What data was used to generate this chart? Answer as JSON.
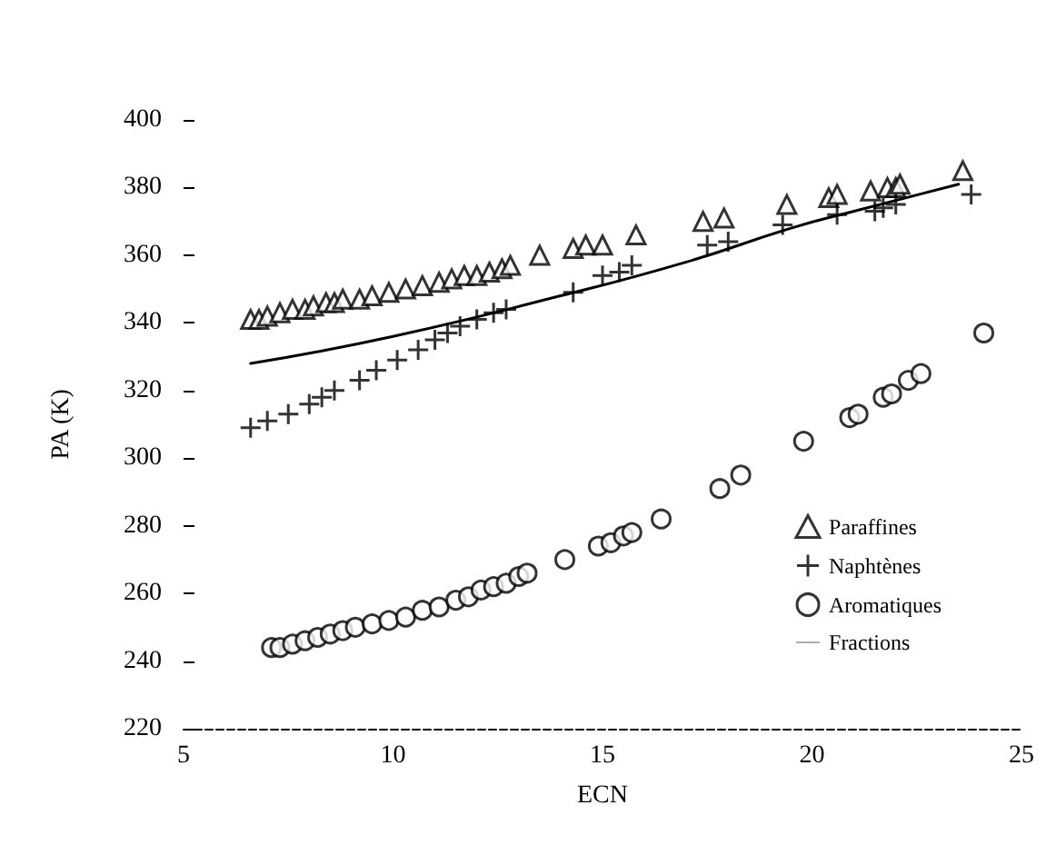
{
  "chart_data": {
    "type": "scatter",
    "xlabel": "ECN",
    "ylabel": "PA (K)",
    "xlim": [
      5,
      25
    ],
    "xticks": [
      5,
      10,
      15,
      20,
      25
    ],
    "ylim": [
      220,
      400
    ],
    "yticks": [
      220,
      240,
      260,
      280,
      300,
      320,
      340,
      360,
      380,
      400
    ],
    "grid": false,
    "legend": "right",
    "series": [
      {
        "name": "Paraffines",
        "color": "#000000",
        "marker": "triangle",
        "x": [
          6.6,
          6.8,
          7.0,
          7.3,
          7.6,
          7.9,
          8.1,
          8.4,
          8.6,
          8.8,
          9.2,
          9.5,
          9.9,
          10.3,
          10.7,
          11.1,
          11.4,
          11.7,
          12.0,
          12.3,
          12.6,
          12.8,
          13.5,
          14.3,
          14.6,
          15.0,
          15.8,
          17.4,
          17.9,
          19.4,
          20.4,
          20.6,
          21.4,
          21.8,
          22.0,
          22.1,
          23.6
        ],
        "values": [
          341,
          341,
          342,
          343,
          344,
          344,
          345,
          346,
          346,
          347,
          347,
          348,
          349,
          350,
          351,
          352,
          353,
          354,
          354,
          355,
          356,
          357,
          360,
          362,
          363,
          363,
          366,
          370,
          371,
          375,
          377,
          378,
          379,
          380,
          380,
          381,
          385
        ]
      },
      {
        "name": "Naphtènes",
        "color": "#000000",
        "marker": "cross",
        "x": [
          6.6,
          7.0,
          7.5,
          8.0,
          8.3,
          8.6,
          9.2,
          9.6,
          10.1,
          10.6,
          11.0,
          11.3,
          11.6,
          12.0,
          12.4,
          12.7,
          14.3,
          15.0,
          15.4,
          15.7,
          17.5,
          18.0,
          19.3,
          20.6,
          21.5,
          21.7,
          22.0,
          23.8
        ],
        "values": [
          309,
          311,
          313,
          316,
          318,
          320,
          323,
          326,
          329,
          332,
          335,
          337,
          339,
          341,
          343,
          344,
          349,
          354,
          355,
          357,
          363,
          364,
          369,
          372,
          373,
          374,
          375,
          378
        ]
      },
      {
        "name": "Aromatiques",
        "color": "#000000",
        "marker": "circle",
        "x": [
          7.1,
          7.3,
          7.6,
          7.9,
          8.2,
          8.5,
          8.8,
          9.1,
          9.5,
          9.9,
          10.3,
          10.7,
          11.1,
          11.5,
          11.8,
          12.1,
          12.4,
          12.7,
          13.0,
          13.2,
          14.1,
          14.9,
          15.2,
          15.5,
          15.7,
          16.4,
          17.8,
          18.3,
          19.8,
          20.9,
          21.1,
          21.7,
          21.9,
          22.3,
          22.6,
          24.1
        ],
        "values": [
          244,
          244,
          245,
          246,
          247,
          248,
          249,
          250,
          251,
          252,
          253,
          255,
          256,
          258,
          259,
          261,
          262,
          263,
          265,
          266,
          270,
          274,
          275,
          277,
          278,
          282,
          291,
          295,
          305,
          312,
          313,
          318,
          319,
          323,
          325,
          337
        ]
      },
      {
        "name": "Fractions",
        "color": "#000000",
        "type": "line",
        "marker": "none",
        "line_style": "solid",
        "x": [
          6.6,
          10,
          14,
          17,
          19.5,
          21,
          23.5
        ],
        "values": [
          328,
          336,
          348,
          358,
          368,
          373,
          381
        ]
      }
    ]
  }
}
